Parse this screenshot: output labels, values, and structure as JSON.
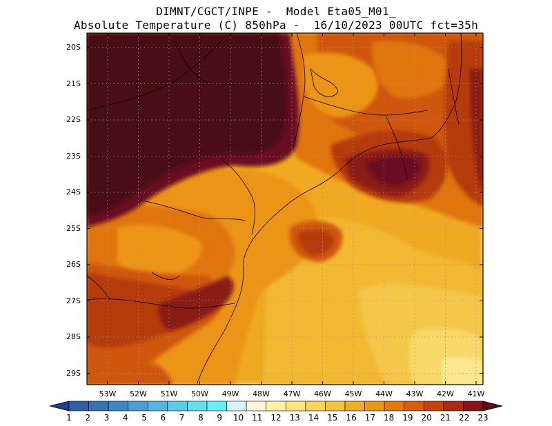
{
  "header": {
    "line1": "DIMNT/CGCT/INPE -  Model Eta05_M01_",
    "line2": "Absolute Temperature (C) 850hPa -  16/10/2023 00UTC fct=35h"
  },
  "axes": {
    "lat_labels": [
      "20S",
      "21S",
      "22S",
      "23S",
      "24S",
      "25S",
      "26S",
      "27S",
      "28S",
      "29S"
    ],
    "lon_labels": [
      "53W",
      "52W",
      "51W",
      "50W",
      "49W",
      "48W",
      "47W",
      "46W",
      "45W",
      "44W",
      "43W",
      "42W",
      "41W"
    ]
  },
  "colorbar": {
    "labels": [
      "1",
      "2",
      "3",
      "4",
      "5",
      "6",
      "7",
      "8",
      "9",
      "10",
      "11",
      "12",
      "13",
      "14",
      "15",
      "16",
      "17",
      "18",
      "19",
      "20",
      "21",
      "22",
      "23"
    ],
    "colors": [
      "#1f3f8c",
      "#2f5ea3",
      "#3573b3",
      "#3d88c2",
      "#4a9fd2",
      "#56b6e0",
      "#5ccbe8",
      "#62dff0",
      "#66f0f8",
      "#d8f4fb",
      "#fff6d8",
      "#fff0a8",
      "#fde680",
      "#f8d45c",
      "#f3c440",
      "#eeae28",
      "#ea9810",
      "#e27a0c",
      "#d65e08",
      "#c44408",
      "#a82c10",
      "#86141a",
      "#5a0f1c"
    ]
  },
  "field_colors": {
    "t23": "#4a0f18",
    "t22": "#6a0e20",
    "t21": "#8a1a18",
    "t20": "#b53a10",
    "t19": "#cf5608",
    "t18": "#e07410",
    "t17": "#ec9414",
    "t16": "#f0aa20",
    "t15": "#f2b832",
    "t14": "#f4c64a",
    "t13": "#f8d868",
    "t12": "#fbe88e"
  }
}
